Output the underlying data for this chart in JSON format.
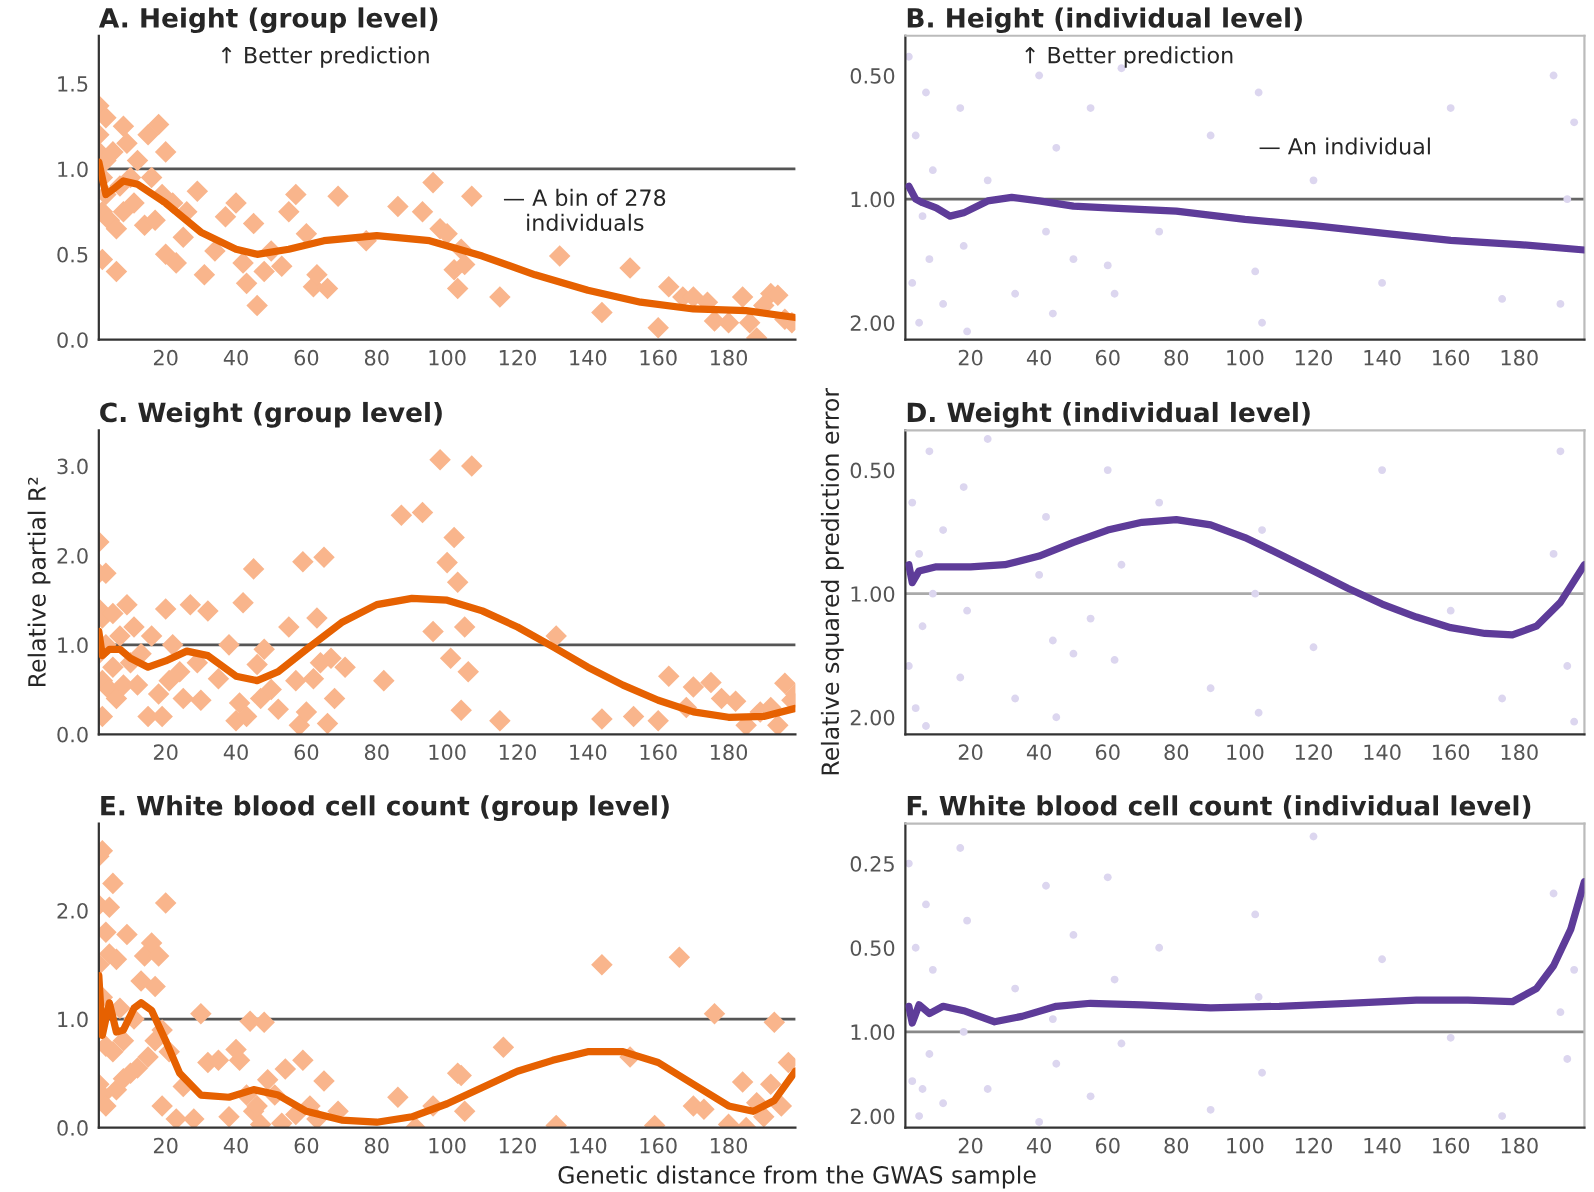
{
  "chart_data": [
    {
      "type": "scatter",
      "title": "A. Height (group level)",
      "xlim": [
        1,
        199
      ],
      "xticks": [
        20,
        40,
        60,
        80,
        100,
        120,
        140,
        160,
        180
      ],
      "ylim": [
        0,
        1.78
      ],
      "yticks": [
        {
          "value": 0,
          "label": "0.0"
        },
        {
          "value": 0.5,
          "label": "0.5"
        },
        {
          "value": 1,
          "label": "1.0"
        },
        {
          "value": 1.5,
          "label": "1.5"
        }
      ],
      "annotations": [
        "↑ Better prediction",
        "— A bin of 278\nindividuals"
      ],
      "ref_lines": [
        {
          "axis": "y",
          "value": 1,
          "color": "#555555"
        }
      ],
      "series": [
        {
          "type": "scatter",
          "marker": "diamond",
          "color": "#f9b58c",
          "x": [
            1,
            1,
            1,
            2,
            2,
            2,
            3,
            3,
            3,
            4,
            5,
            6,
            6,
            7,
            8,
            8,
            9,
            10,
            11,
            12,
            14,
            15,
            16,
            17,
            18,
            19,
            20,
            20,
            22,
            23,
            25,
            26,
            29,
            31,
            34,
            37,
            40,
            42,
            43,
            45,
            46,
            48,
            50,
            53,
            55,
            57,
            60,
            62,
            63,
            66,
            69,
            77,
            86,
            93,
            96,
            98,
            100,
            102,
            103,
            104,
            105,
            107,
            115,
            132,
            144,
            152,
            160,
            163,
            167,
            170,
            174,
            176,
            180,
            184,
            186,
            188,
            190,
            192,
            194,
            196,
            198
          ],
          "values": [
            1.37,
            1.2,
            1.1,
            0.95,
            0.75,
            0.47,
            1.3,
            1.05,
            0.85,
            0.7,
            1.1,
            0.65,
            0.4,
            0.9,
            1.25,
            0.75,
            1.15,
            0.95,
            0.8,
            1.05,
            0.67,
            1.2,
            0.95,
            0.7,
            1.26,
            0.85,
            0.5,
            1.1,
            0.8,
            0.45,
            0.6,
            0.75,
            0.87,
            0.38,
            0.52,
            0.72,
            0.8,
            0.45,
            0.33,
            0.68,
            0.2,
            0.4,
            0.52,
            0.43,
            0.75,
            0.85,
            0.62,
            0.31,
            0.38,
            0.3,
            0.84,
            0.58,
            0.78,
            0.75,
            0.92,
            0.65,
            0.62,
            0.41,
            0.3,
            0.53,
            0.44,
            0.84,
            0.25,
            0.49,
            0.16,
            0.42,
            0.07,
            0.31,
            0.25,
            0.25,
            0.22,
            0.11,
            0.1,
            0.25,
            0.1,
            0.01,
            0.2,
            0.27,
            0.26,
            0.12,
            0.1
          ]
        },
        {
          "type": "line",
          "color": "#e66101",
          "x": [
            1,
            3,
            5,
            8,
            12,
            20,
            30,
            40,
            46,
            55,
            65,
            80,
            95,
            110,
            125,
            140,
            155,
            170,
            185,
            199
          ],
          "values": [
            1.04,
            0.85,
            0.88,
            0.93,
            0.91,
            0.8,
            0.63,
            0.53,
            0.5,
            0.53,
            0.58,
            0.61,
            0.58,
            0.49,
            0.38,
            0.29,
            0.22,
            0.18,
            0.17,
            0.13
          ]
        }
      ]
    },
    {
      "type": "scatter",
      "title": "B. Height (individual level)",
      "log": "y",
      "xlim": [
        1,
        199
      ],
      "xticks": [
        20,
        40,
        60,
        80,
        100,
        120,
        140,
        160,
        180
      ],
      "ylim": [
        2.2,
        0.4
      ],
      "yticks": [
        {
          "value": 0.5,
          "label": "0.50"
        },
        {
          "value": 1,
          "label": "1.00"
        },
        {
          "value": 2,
          "label": "2.00"
        }
      ],
      "annotations": [
        "↑ Better prediction",
        "— An individual"
      ],
      "ref_lines": [
        {
          "axis": "y",
          "value": 1,
          "color": "#666666"
        }
      ],
      "series": [
        {
          "type": "scatter",
          "marker": "circle",
          "color": "#dcd6ef",
          "x": [
            2,
            3,
            4,
            5,
            6,
            7,
            8,
            9,
            12,
            17,
            18,
            19,
            25,
            33,
            40,
            42,
            44,
            45,
            50,
            55,
            60,
            62,
            64,
            75,
            90,
            103,
            104,
            105,
            120,
            140,
            160,
            175,
            190,
            192,
            194,
            196
          ],
          "values": [
            0.45,
            1.6,
            0.7,
            2.0,
            1.1,
            0.55,
            1.4,
            0.85,
            1.8,
            0.6,
            1.3,
            2.1,
            0.9,
            1.7,
            0.5,
            1.2,
            1.9,
            0.75,
            1.4,
            0.6,
            1.45,
            1.7,
            0.48,
            1.2,
            0.7,
            1.5,
            0.55,
            2.0,
            0.9,
            1.6,
            0.6,
            1.75,
            0.5,
            1.8,
            1.0,
            0.65
          ]
        },
        {
          "type": "line",
          "color": "#5e3c99",
          "x": [
            2,
            4,
            6,
            10,
            14,
            18,
            25,
            32,
            40,
            50,
            60,
            80,
            100,
            120,
            140,
            160,
            180,
            199
          ],
          "values": [
            0.93,
            1.0,
            1.02,
            1.05,
            1.1,
            1.08,
            1.01,
            0.99,
            1.01,
            1.04,
            1.05,
            1.07,
            1.12,
            1.16,
            1.21,
            1.26,
            1.29,
            1.33
          ]
        }
      ]
    },
    {
      "type": "scatter",
      "title": "C. Weight (group level)",
      "ylabel": "Relative partial R²",
      "xlim": [
        1,
        199
      ],
      "xticks": [
        20,
        40,
        60,
        80,
        100,
        120,
        140,
        160,
        180
      ],
      "ylim": [
        0,
        3.4
      ],
      "yticks": [
        {
          "value": 0,
          "label": "0.0"
        },
        {
          "value": 1,
          "label": "1.0"
        },
        {
          "value": 2,
          "label": "2.0"
        },
        {
          "value": 3,
          "label": "3.0"
        }
      ],
      "ref_lines": [
        {
          "axis": "y",
          "value": 1,
          "color": "#555555"
        }
      ],
      "series": [
        {
          "type": "scatter",
          "marker": "diamond",
          "color": "#f9b58c",
          "x": [
            1,
            1,
            1,
            1,
            2,
            2,
            2,
            3,
            3,
            4,
            5,
            5,
            6,
            7,
            8,
            9,
            10,
            11,
            12,
            13,
            15,
            16,
            18,
            19,
            20,
            21,
            22,
            24,
            25,
            27,
            29,
            30,
            32,
            35,
            38,
            40,
            41,
            42,
            43,
            45,
            46,
            47,
            48,
            50,
            52,
            55,
            57,
            58,
            59,
            60,
            62,
            63,
            64,
            65,
            66,
            67,
            68,
            71,
            82,
            87,
            93,
            96,
            98,
            100,
            101,
            102,
            103,
            104,
            105,
            106,
            107,
            115,
            131,
            144,
            153,
            160,
            163,
            168,
            170,
            175,
            178,
            182,
            185,
            189,
            192,
            194,
            196,
            198,
            199
          ],
          "values": [
            2.15,
            1.8,
            1.4,
            0.9,
            1.3,
            0.6,
            0.2,
            1.8,
            1.0,
            0.5,
            1.35,
            0.75,
            0.4,
            1.1,
            0.55,
            1.45,
            0.8,
            1.2,
            0.55,
            0.9,
            0.2,
            1.1,
            0.45,
            0.2,
            1.4,
            0.6,
            1.0,
            0.7,
            0.4,
            1.45,
            0.8,
            0.38,
            1.38,
            0.62,
            1.0,
            0.15,
            0.35,
            1.47,
            0.2,
            1.85,
            0.78,
            0.4,
            0.95,
            0.5,
            0.28,
            1.2,
            0.6,
            0.1,
            1.93,
            0.25,
            0.62,
            1.3,
            0.8,
            1.98,
            0.12,
            0.85,
            0.4,
            0.75,
            0.6,
            2.45,
            2.48,
            1.15,
            3.07,
            1.92,
            0.85,
            2.2,
            1.7,
            0.27,
            1.2,
            0.7,
            3.0,
            0.15,
            1.1,
            0.17,
            0.2,
            0.15,
            0.65,
            0.3,
            0.53,
            0.58,
            0.4,
            0.37,
            0.1,
            0.25,
            0.3,
            0.1,
            0.57,
            0.38,
            0.45
          ]
        },
        {
          "type": "line",
          "color": "#e66101",
          "x": [
            1,
            2,
            4,
            7,
            10,
            15,
            20,
            26,
            32,
            40,
            46,
            52,
            60,
            70,
            80,
            90,
            100,
            110,
            120,
            130,
            140,
            150,
            160,
            170,
            180,
            190,
            199
          ],
          "values": [
            1.15,
            0.88,
            0.95,
            0.95,
            0.85,
            0.75,
            0.82,
            0.93,
            0.88,
            0.65,
            0.6,
            0.7,
            0.95,
            1.25,
            1.45,
            1.52,
            1.5,
            1.38,
            1.2,
            0.98,
            0.75,
            0.55,
            0.38,
            0.25,
            0.19,
            0.2,
            0.29
          ]
        }
      ]
    },
    {
      "type": "scatter",
      "title": "D. Weight (individual level)",
      "ylabel": "Relative squared prediction error",
      "log": "y",
      "xlim": [
        1,
        199
      ],
      "xticks": [
        20,
        40,
        60,
        80,
        100,
        120,
        140,
        160,
        180
      ],
      "ylim": [
        2.2,
        0.4
      ],
      "yticks": [
        {
          "value": 0.5,
          "label": "0.50"
        },
        {
          "value": 1,
          "label": "1.00"
        },
        {
          "value": 2,
          "label": "2.00"
        }
      ],
      "ref_lines": [
        {
          "axis": "y",
          "value": 1,
          "color": "#aaaaaa"
        }
      ],
      "series": [
        {
          "type": "scatter",
          "marker": "circle",
          "color": "#dcd6ef",
          "x": [
            2,
            3,
            4,
            5,
            6,
            7,
            8,
            9,
            12,
            17,
            18,
            19,
            25,
            33,
            40,
            42,
            44,
            45,
            50,
            55,
            60,
            62,
            64,
            75,
            90,
            103,
            104,
            105,
            120,
            140,
            160,
            175,
            190,
            192,
            194,
            196
          ],
          "values": [
            1.5,
            0.6,
            1.9,
            0.8,
            1.2,
            2.1,
            0.45,
            1.0,
            0.7,
            1.6,
            0.55,
            1.1,
            0.42,
            1.8,
            0.9,
            0.65,
            1.3,
            2.0,
            1.4,
            1.15,
            0.5,
            1.45,
            0.85,
            0.6,
            1.7,
            1.0,
            1.95,
            0.7,
            1.35,
            0.5,
            1.1,
            1.8,
            0.8,
            0.45,
            1.5,
            2.05
          ]
        },
        {
          "type": "line",
          "color": "#5e3c99",
          "x": [
            2,
            3,
            5,
            10,
            20,
            30,
            40,
            50,
            60,
            70,
            80,
            90,
            100,
            110,
            120,
            130,
            140,
            150,
            160,
            170,
            178,
            185,
            192,
            199
          ],
          "values": [
            0.85,
            0.94,
            0.88,
            0.86,
            0.86,
            0.85,
            0.81,
            0.75,
            0.7,
            0.67,
            0.66,
            0.68,
            0.73,
            0.8,
            0.88,
            0.97,
            1.06,
            1.14,
            1.21,
            1.25,
            1.26,
            1.2,
            1.05,
            0.85
          ]
        }
      ]
    },
    {
      "type": "scatter",
      "title": "E. White blood cell count (group level)",
      "xlabel": "Genetic distance from the GWAS sample",
      "xlim": [
        1,
        199
      ],
      "xticks": [
        20,
        40,
        60,
        80,
        100,
        120,
        140,
        160,
        180
      ],
      "ylim": [
        0,
        2.8
      ],
      "yticks": [
        {
          "value": 0,
          "label": "0.0"
        },
        {
          "value": 1,
          "label": "1.0"
        },
        {
          "value": 2,
          "label": "2.0"
        }
      ],
      "ref_lines": [
        {
          "axis": "y",
          "value": 1,
          "color": "#555555"
        }
      ],
      "series": [
        {
          "type": "scatter",
          "marker": "diamond",
          "color": "#f9b58c",
          "x": [
            1,
            1,
            1,
            1,
            2,
            2,
            2,
            3,
            3,
            3,
            4,
            4,
            5,
            5,
            6,
            6,
            7,
            8,
            8,
            9,
            10,
            11,
            12,
            13,
            14,
            15,
            16,
            17,
            17,
            18,
            19,
            19,
            20,
            21,
            23,
            25,
            28,
            30,
            32,
            35,
            38,
            40,
            41,
            43,
            44,
            45,
            46,
            47,
            48,
            49,
            51,
            53,
            54,
            57,
            59,
            61,
            63,
            65,
            69,
            86,
            91,
            96,
            103,
            104,
            105,
            116,
            131,
            144,
            152,
            159,
            166,
            170,
            173,
            176,
            180,
            184,
            185,
            188,
            190,
            192,
            193,
            195,
            197
          ],
          "values": [
            2.5,
            2.05,
            1.5,
            0.4,
            2.55,
            1.2,
            0.3,
            1.8,
            0.75,
            0.2,
            2.03,
            1.6,
            2.25,
            0.7,
            1.55,
            0.35,
            1.1,
            0.45,
            0.8,
            1.78,
            0.5,
            1.0,
            0.55,
            1.35,
            1.58,
            0.65,
            1.7,
            1.3,
            0.8,
            1.58,
            0.9,
            0.2,
            2.07,
            0.7,
            0.08,
            0.38,
            0.08,
            1.05,
            0.6,
            0.62,
            0.1,
            0.72,
            0.62,
            0.3,
            0.98,
            0.15,
            0.2,
            0.03,
            0.97,
            0.44,
            0.3,
            0.04,
            0.54,
            0.12,
            0.62,
            0.2,
            0.08,
            0.43,
            0.15,
            0.28,
            0.0,
            0.2,
            0.5,
            0.48,
            0.15,
            0.74,
            0.02,
            1.5,
            0.65,
            0.02,
            1.57,
            0.2,
            0.17,
            1.05,
            0.03,
            0.42,
            0.0,
            0.23,
            0.1,
            0.4,
            0.97,
            0.2,
            0.6
          ]
        },
        {
          "type": "line",
          "color": "#e66101",
          "x": [
            1,
            2,
            3,
            4,
            6,
            8,
            11,
            13,
            16,
            20,
            24,
            30,
            38,
            45,
            52,
            60,
            70,
            80,
            90,
            100,
            110,
            120,
            130,
            140,
            150,
            160,
            170,
            180,
            187,
            193,
            199
          ],
          "values": [
            1.4,
            0.85,
            1.0,
            1.15,
            0.88,
            0.9,
            1.1,
            1.15,
            1.08,
            0.8,
            0.5,
            0.3,
            0.28,
            0.35,
            0.3,
            0.15,
            0.07,
            0.05,
            0.1,
            0.22,
            0.37,
            0.52,
            0.62,
            0.7,
            0.7,
            0.6,
            0.4,
            0.2,
            0.15,
            0.25,
            0.52
          ]
        }
      ]
    },
    {
      "type": "scatter",
      "title": "F. White blood cell count (individual level)",
      "log": "y",
      "xlim": [
        1,
        199
      ],
      "xticks": [
        20,
        40,
        60,
        80,
        100,
        120,
        140,
        160,
        180
      ],
      "ylim": [
        2.2,
        0.18
      ],
      "yticks": [
        {
          "value": 0.25,
          "label": "0.25"
        },
        {
          "value": 0.5,
          "label": "0.50"
        },
        {
          "value": 1,
          "label": "1.00"
        },
        {
          "value": 2,
          "label": "2.00"
        }
      ],
      "ref_lines": [
        {
          "axis": "y",
          "value": 1,
          "color": "#888888"
        }
      ],
      "series": [
        {
          "type": "scatter",
          "marker": "circle",
          "color": "#dcd6ef",
          "x": [
            2,
            3,
            4,
            5,
            6,
            7,
            8,
            9,
            12,
            17,
            18,
            19,
            25,
            33,
            40,
            42,
            44,
            45,
            50,
            55,
            60,
            62,
            64,
            75,
            90,
            103,
            104,
            105,
            120,
            140,
            160,
            175,
            190,
            192,
            194,
            196
          ],
          "values": [
            0.25,
            1.5,
            0.5,
            2.0,
            1.6,
            0.35,
            1.2,
            0.6,
            1.8,
            0.22,
            1.0,
            0.4,
            1.6,
            0.7,
            2.1,
            0.3,
            0.9,
            1.3,
            0.45,
            1.7,
            0.28,
            0.65,
            1.1,
            0.5,
            1.9,
            0.38,
            0.75,
            1.4,
            0.2,
            0.55,
            1.05,
            2.0,
            0.32,
            0.85,
            1.25,
            0.6
          ]
        },
        {
          "type": "line",
          "color": "#5e3c99",
          "x": [
            2,
            3,
            5,
            8,
            12,
            18,
            27,
            35,
            45,
            55,
            70,
            90,
            110,
            130,
            150,
            165,
            178,
            185,
            190,
            195,
            199
          ],
          "values": [
            0.81,
            0.93,
            0.8,
            0.86,
            0.81,
            0.84,
            0.92,
            0.88,
            0.81,
            0.79,
            0.8,
            0.82,
            0.81,
            0.79,
            0.77,
            0.77,
            0.78,
            0.7,
            0.58,
            0.43,
            0.29
          ]
        }
      ]
    }
  ]
}
